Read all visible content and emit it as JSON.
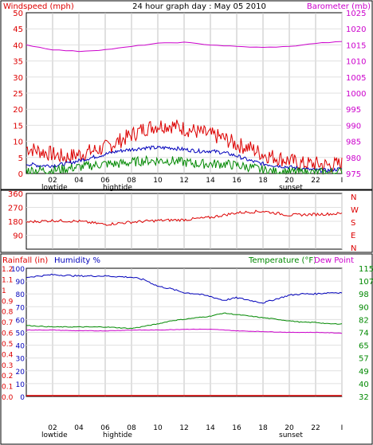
{
  "chart_data": [
    {
      "type": "line",
      "title": "24 hour graph day : May 05 2010",
      "ylabel_left": "Windspeed (mph)",
      "ylabel_right": "Barometer (mb)",
      "x_ticks": [
        "02",
        "04",
        "06",
        "08",
        "10",
        "12",
        "14",
        "16",
        "18",
        "20",
        "22",
        "I"
      ],
      "x_annotations": {
        "lowtide": "lowtide",
        "hightide": "hightide",
        "sunset": "sunset"
      },
      "y_left_ticks": [
        "0",
        "5",
        "10",
        "15",
        "20",
        "25",
        "30",
        "35",
        "40",
        "45",
        "50"
      ],
      "y_left_range": [
        0,
        50
      ],
      "y_right_ticks": [
        "975",
        "980",
        "985",
        "990",
        "995",
        "1000",
        "1005",
        "1010",
        "1015",
        "1020",
        "1025"
      ],
      "y_right_range": [
        975,
        1025
      ],
      "grid": true,
      "series": [
        {
          "key": "gust",
          "color": "#dd0000",
          "hours": [
            0,
            1,
            2,
            3,
            4,
            5,
            6,
            7,
            8,
            9,
            10,
            11,
            12,
            13,
            14,
            15,
            16,
            17,
            18,
            19,
            20,
            21,
            22,
            23,
            24
          ],
          "values": [
            8,
            7,
            6,
            5,
            6,
            7,
            8,
            10,
            12,
            14,
            15,
            15,
            14,
            13,
            12,
            11,
            9,
            8,
            6,
            5,
            4,
            3,
            3,
            2.5,
            3
          ]
        },
        {
          "key": "avg",
          "color": "#0000bb",
          "hours": [
            0,
            1,
            2,
            3,
            4,
            5,
            6,
            7,
            8,
            9,
            10,
            11,
            12,
            13,
            14,
            15,
            16,
            17,
            18,
            19,
            20,
            21,
            22,
            23,
            24
          ],
          "values": [
            3,
            2.5,
            2.5,
            3,
            4,
            5,
            6,
            7,
            7.5,
            8,
            8,
            8,
            7.5,
            7,
            7,
            6.5,
            5.5,
            4,
            3,
            2.5,
            2,
            1.5,
            1,
            1,
            1.5
          ]
        },
        {
          "key": "low",
          "color": "#008800",
          "hours": [
            0,
            1,
            2,
            3,
            4,
            5,
            6,
            7,
            8,
            9,
            10,
            11,
            12,
            13,
            14,
            15,
            16,
            17,
            18,
            19,
            20,
            21,
            22,
            23,
            24
          ],
          "values": [
            1,
            1,
            1,
            1.5,
            2,
            2.5,
            3,
            3,
            3.5,
            4,
            4,
            4,
            3.5,
            3,
            3,
            3,
            2.5,
            2,
            1,
            0.5,
            0.5,
            0.3,
            0.3,
            0.3,
            0.5
          ]
        },
        {
          "key": "barometer",
          "color": "#cc00cc",
          "axis": "right",
          "hours": [
            0,
            2,
            4,
            6,
            8,
            10,
            12,
            14,
            16,
            18,
            20,
            22,
            24
          ],
          "values": [
            1015,
            1013.5,
            1013,
            1013.5,
            1014.5,
            1015.5,
            1015.8,
            1015,
            1014.5,
            1014.2,
            1014.5,
            1015.5,
            1016
          ]
        }
      ]
    },
    {
      "type": "line",
      "ylabel_right_letters": [
        "N",
        "W",
        "S",
        "E",
        "N"
      ],
      "y_left_ticks": [
        "360",
        "270",
        "180",
        "90"
      ],
      "y_left_range": [
        0,
        360
      ],
      "series": [
        {
          "key": "direction",
          "color": "#dd0000",
          "hours": [
            0,
            2,
            4,
            6,
            8,
            10,
            12,
            14,
            16,
            18,
            20,
            22,
            24
          ],
          "values": [
            175,
            185,
            180,
            160,
            175,
            185,
            190,
            205,
            235,
            245,
            220,
            225,
            230
          ]
        }
      ]
    },
    {
      "type": "line",
      "ylabel_left": "Rainfall (in)",
      "ylabel_left2": "Humidity %",
      "ylabel_right": "Temperature (°F)",
      "ylabel_right2": "Dew Point",
      "x_ticks": [
        "02",
        "04",
        "06",
        "08",
        "10",
        "12",
        "14",
        "16",
        "18",
        "20",
        "22",
        "I"
      ],
      "x_annotations": {
        "lowtide": "lowtide",
        "hightide": "hightide",
        "sunset": "sunset"
      },
      "rain_ticks": [
        "1.2",
        "1.1",
        "1",
        "0.9",
        "0.8",
        "0.7",
        "0.6",
        "0.5",
        "0.4",
        "0.3",
        "0.2",
        "0.1",
        "0.0"
      ],
      "humidity_ticks": [
        "100",
        "90",
        "80",
        "70",
        "60",
        "50",
        "40",
        "30",
        "20",
        "10",
        "0"
      ],
      "temp_ticks": [
        "115",
        "107",
        "98",
        "90",
        "82",
        "74",
        "65",
        "57",
        "49",
        "40",
        "32"
      ],
      "y_temp_range": [
        32,
        115
      ],
      "series": [
        {
          "key": "humidity",
          "color": "#0000bb",
          "hours": [
            0,
            2,
            4,
            6,
            8,
            9,
            10,
            11,
            12,
            13,
            14,
            15,
            16,
            17,
            18,
            19,
            20,
            21,
            22,
            23,
            24
          ],
          "values": [
            93,
            95,
            94,
            94,
            93,
            91,
            86,
            84,
            81,
            80,
            78,
            75,
            77,
            75,
            73,
            76,
            79,
            80,
            80,
            81,
            81
          ]
        },
        {
          "key": "temperature",
          "color": "#008800",
          "hours": [
            0,
            2,
            4,
            6,
            8,
            10,
            11,
            12,
            13,
            14,
            15,
            16,
            17,
            18,
            19,
            20,
            21,
            22,
            23,
            24
          ],
          "values": [
            78,
            77,
            77,
            77,
            76,
            79,
            81,
            82,
            83,
            84,
            86,
            85,
            84,
            83,
            82,
            81,
            80,
            80,
            79,
            79
          ]
        },
        {
          "key": "dewpoint",
          "color": "#cc00cc",
          "hours": [
            0,
            2,
            4,
            6,
            8,
            10,
            12,
            14,
            16,
            18,
            20,
            22,
            24
          ],
          "values": [
            75,
            75,
            74.5,
            74.5,
            75,
            75,
            75.5,
            75.5,
            74.5,
            74,
            73.5,
            73.5,
            73
          ]
        },
        {
          "key": "rainfall",
          "color": "#dd0000",
          "hours": [
            0,
            24
          ],
          "values": [
            0,
            0
          ]
        }
      ]
    }
  ]
}
